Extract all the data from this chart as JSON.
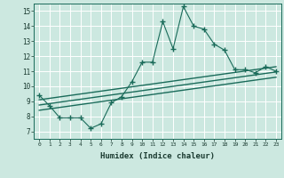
{
  "title": "",
  "xlabel": "Humidex (Indice chaleur)",
  "ylabel": "",
  "bg_color": "#cce8e0",
  "line_color": "#1a6b5a",
  "grid_color": "#ffffff",
  "xlim": [
    -0.5,
    23.5
  ],
  "ylim": [
    6.5,
    15.5
  ],
  "xticks": [
    0,
    1,
    2,
    3,
    4,
    5,
    6,
    7,
    8,
    9,
    10,
    11,
    12,
    13,
    14,
    15,
    16,
    17,
    18,
    19,
    20,
    21,
    22,
    23
  ],
  "yticks": [
    7,
    8,
    9,
    10,
    11,
    12,
    13,
    14,
    15
  ],
  "main_line_x": [
    0,
    1,
    2,
    3,
    4,
    5,
    6,
    7,
    8,
    9,
    10,
    11,
    12,
    13,
    14,
    15,
    16,
    17,
    18,
    19,
    20,
    21,
    22,
    23
  ],
  "main_line_y": [
    9.4,
    8.7,
    7.9,
    7.9,
    7.9,
    7.2,
    7.5,
    8.9,
    9.3,
    10.3,
    11.6,
    11.6,
    14.3,
    12.5,
    15.3,
    14.0,
    13.8,
    12.8,
    12.4,
    11.1,
    11.1,
    10.9,
    11.3,
    11.0
  ],
  "upper_line_x": [
    0,
    23
  ],
  "upper_line_y": [
    9.1,
    11.3
  ],
  "lower_line_x": [
    0,
    23
  ],
  "lower_line_y": [
    8.4,
    10.6
  ],
  "middle_line_x": [
    0,
    23
  ],
  "middle_line_y": [
    8.75,
    10.95
  ]
}
